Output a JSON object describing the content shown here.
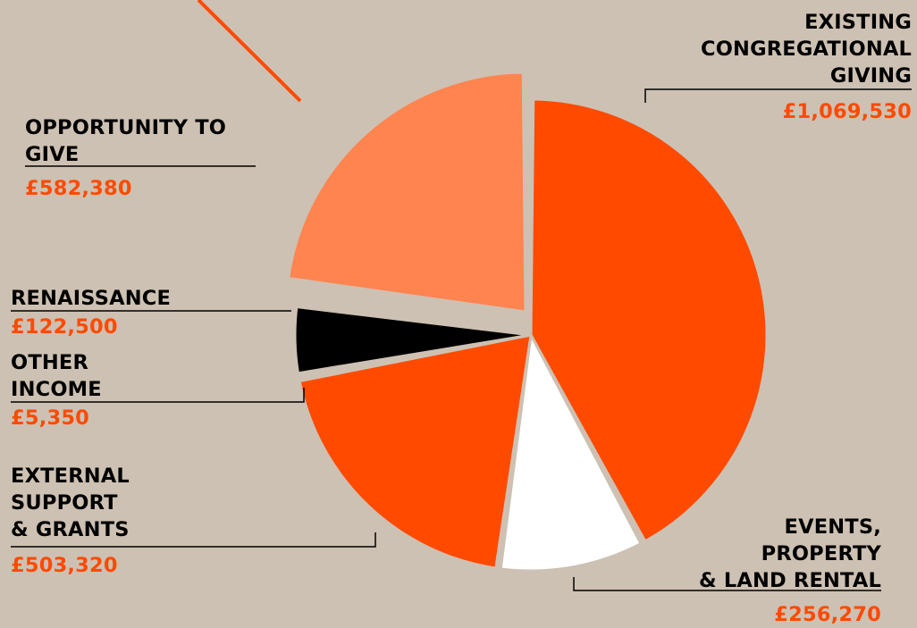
{
  "colors": {
    "background": "#cdc1b3",
    "primary": "#ff4a00",
    "highlight": "#ff8450",
    "white": "#ffffff",
    "black": "#000000",
    "value_text": "#ff4a00"
  },
  "chart_data": {
    "type": "pie",
    "currency": "GBP",
    "slices": [
      {
        "key": "existing",
        "lines": [
          "EXISTING",
          "CONGREGATIONAL",
          "GIVING"
        ],
        "value": 1069530,
        "value_label": "£1,069,530",
        "color": "#ff4a00"
      },
      {
        "key": "events",
        "lines": [
          "EVENTS,",
          "PROPERTY",
          "& LAND RENTAL"
        ],
        "value": 256270,
        "value_label": "£256,270",
        "color": "#ffffff"
      },
      {
        "key": "external",
        "lines": [
          "EXTERNAL",
          "SUPPORT",
          "& GRANTS"
        ],
        "value": 503320,
        "value_label": "£503,320",
        "color": "#ff4a00"
      },
      {
        "key": "other",
        "lines": [
          "OTHER",
          "INCOME"
        ],
        "value": 5350,
        "value_label": "£5,350",
        "color": "#ffffff"
      },
      {
        "key": "renaissance",
        "lines": [
          "RENAISSANCE"
        ],
        "value": 122500,
        "value_label": "£122,500",
        "color": "#000000"
      },
      {
        "key": "opportunity",
        "lines": [
          "OPPORTUNITY TO",
          "GIVE"
        ],
        "value": 582380,
        "value_label": "£582,380",
        "color": "#ff8450",
        "exploded": true
      }
    ]
  }
}
